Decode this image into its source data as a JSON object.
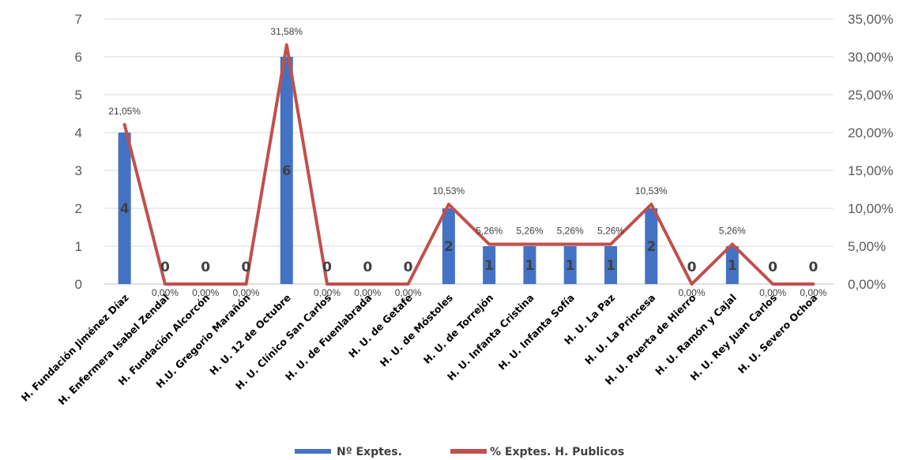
{
  "chart_data": {
    "type": "bar",
    "categories": [
      "H. Fundación Jiménez Díaz",
      "H. Enfermera Isabel Zendal",
      "H. Fundación Alcorcón",
      "H.U. Gregorio Marañón",
      "H. U. 12 de Octubre",
      "H. U. Clínico San Carlos",
      "H. U. de Fuenlabrada",
      "H. U. de Getafe",
      "H. U. de Móstoles",
      "H. U. de Torrejón",
      "H. U. Infanta Cristina",
      "H. U. Infanta Sofía",
      "H. U. La Paz",
      "H. U. La Princesa",
      "H. U. Puerta de Hierro",
      "H. U. Ramón y Cajal",
      "H. U. Rey Juan Carlos",
      "H. U. Severo Ochoa"
    ],
    "series": [
      {
        "name": "Nº Exptes.",
        "type": "bar",
        "axis": "left",
        "color": "#4472C4",
        "values": [
          4,
          0,
          0,
          0,
          6,
          0,
          0,
          0,
          2,
          1,
          1,
          1,
          1,
          2,
          0,
          1,
          0,
          0
        ],
        "labels": [
          "4",
          "0",
          "0",
          "0",
          "6",
          "0",
          "0",
          "0",
          "2",
          "1",
          "1",
          "1",
          "1",
          "2",
          "0",
          "1",
          "0",
          "0"
        ]
      },
      {
        "name": "% Exptes. H. Publicos",
        "type": "line",
        "axis": "right",
        "color": "#C0504D",
        "values": [
          21.05,
          0,
          0,
          0,
          31.58,
          0,
          0,
          0,
          10.53,
          5.26,
          5.26,
          5.26,
          5.26,
          10.53,
          0,
          5.26,
          0,
          0
        ],
        "labels": [
          "21,05%",
          "0,00%",
          "0,00%",
          "0,00%",
          "31,58%",
          "0,00%",
          "0,00%",
          "0,00%",
          "10,53%",
          "5,26%",
          "5,26%",
          "5,26%",
          "5,26%",
          "10,53%",
          "0,00%",
          "5,26%",
          "0,00%",
          "0,00%"
        ]
      }
    ],
    "y_left": {
      "ylim": [
        0,
        7
      ],
      "ticks": [
        "0",
        "1",
        "2",
        "3",
        "4",
        "5",
        "6",
        "7"
      ]
    },
    "y_right": {
      "ylim": [
        0,
        35
      ],
      "ticks": [
        "0,00%",
        "5,00%",
        "10,00%",
        "15,00%",
        "20,00%",
        "25,00%",
        "30,00%",
        "35,00%"
      ]
    },
    "grid": true,
    "legend_position": "bottom"
  }
}
